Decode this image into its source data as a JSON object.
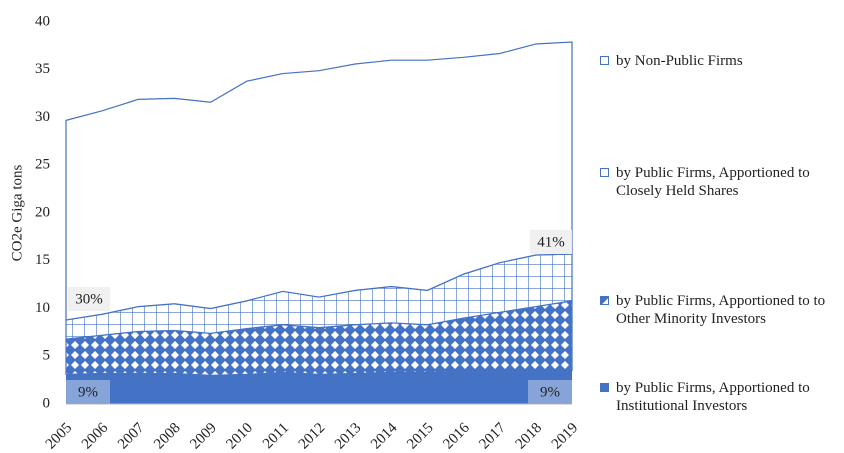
{
  "chart_data": {
    "type": "stacked-area",
    "y_label": "CO2e Giga tons",
    "categories": [
      "2005",
      "2006",
      "2007",
      "2008",
      "2009",
      "2010",
      "2011",
      "2012",
      "2013",
      "2014",
      "2015",
      "2016",
      "2017",
      "2018",
      "2019"
    ],
    "series": [
      {
        "name": "by Public Firms, Apportioned to Institutional Investors",
        "color": "#4472c4",
        "pattern": "solid",
        "values": [
          3.1,
          3.2,
          3.2,
          3.2,
          3.0,
          3.1,
          3.3,
          3.1,
          3.2,
          3.3,
          3.3,
          3.4,
          3.5,
          3.5,
          3.5
        ]
      },
      {
        "name": "by Public Firms, Apportioned to  to Other Minority Investors",
        "color": "#4472c4",
        "pattern": "diamond",
        "values": [
          3.7,
          4.0,
          4.4,
          4.5,
          4.4,
          4.8,
          5.0,
          4.9,
          5.1,
          5.2,
          5.0,
          5.6,
          6.1,
          6.7,
          7.3
        ]
      },
      {
        "name": "by Public Firms, Apportioned to Closely Held Shares",
        "color": "#4472c4",
        "pattern": "grid",
        "values": [
          2.0,
          2.2,
          2.6,
          2.8,
          2.6,
          2.9,
          3.5,
          3.2,
          3.6,
          3.8,
          3.6,
          4.6,
          5.2,
          5.4,
          4.9
        ]
      },
      {
        "name": "by Non-Public Firms",
        "color": "#4472c4",
        "pattern": "none",
        "values": [
          20.9,
          21.3,
          21.7,
          21.5,
          21.6,
          23.0,
          22.8,
          23.7,
          23.7,
          23.7,
          24.1,
          22.7,
          21.9,
          22.1,
          22.2
        ]
      }
    ],
    "annotations": [
      "30%",
      "41%",
      "9%",
      "9%"
    ],
    "ylim": [
      0,
      40
    ],
    "yticks": [
      0,
      5,
      10,
      15,
      20,
      25,
      30,
      35,
      40
    ],
    "grid": false,
    "legend": "right"
  }
}
